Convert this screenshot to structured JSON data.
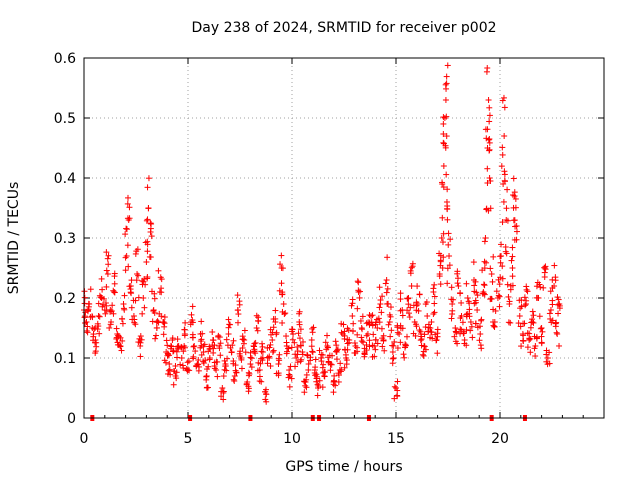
{
  "chart_data": {
    "type": "scatter",
    "title": "Day 238 of 2024, SRMTID for receiver p002",
    "xlabel": "GPS time / hours",
    "ylabel": "SRMTID / TECUs",
    "xlim": [
      0,
      25
    ],
    "ylim": [
      0,
      0.6
    ],
    "xticks": [
      0,
      5,
      10,
      15,
      20
    ],
    "xtick_labels": [
      "0",
      "5",
      "10",
      "15",
      "20"
    ],
    "yticks": [
      0,
      0.1,
      0.2,
      0.3,
      0.4,
      0.5,
      0.6
    ],
    "ytick_labels": [
      "0",
      "0.1",
      "0.2",
      "0.3",
      "0.4",
      "0.5",
      "0.6"
    ],
    "grid": true,
    "marker": "+",
    "color": "#ff0000",
    "series": [
      {
        "name": "SRMTID",
        "points": [
          [
            0.0,
            0.18
          ],
          [
            0.12,
            0.16
          ],
          [
            0.25,
            0.19
          ],
          [
            0.4,
            0.15
          ],
          [
            0.55,
            0.13
          ],
          [
            0.7,
            0.17
          ],
          [
            0.85,
            0.2
          ],
          [
            1.0,
            0.18
          ],
          [
            1.15,
            0.24
          ],
          [
            1.3,
            0.16
          ],
          [
            1.45,
            0.21
          ],
          [
            1.6,
            0.14
          ],
          [
            1.75,
            0.12
          ],
          [
            1.9,
            0.19
          ],
          [
            2.05,
            0.27
          ],
          [
            2.15,
            0.33
          ],
          [
            2.25,
            0.22
          ],
          [
            2.4,
            0.17
          ],
          [
            2.55,
            0.24
          ],
          [
            2.7,
            0.12
          ],
          [
            2.85,
            0.2
          ],
          [
            3.0,
            0.26
          ],
          [
            3.1,
            0.35
          ],
          [
            3.2,
            0.31
          ],
          [
            3.35,
            0.18
          ],
          [
            3.5,
            0.15
          ],
          [
            3.65,
            0.21
          ],
          [
            3.8,
            0.16
          ],
          [
            3.95,
            0.11
          ],
          [
            4.1,
            0.09
          ],
          [
            4.25,
            0.13
          ],
          [
            4.4,
            0.07
          ],
          [
            4.55,
            0.12
          ],
          [
            4.7,
            0.1
          ],
          [
            4.85,
            0.14
          ],
          [
            5.0,
            0.08
          ],
          [
            5.15,
            0.16
          ],
          [
            5.3,
            0.12
          ],
          [
            5.45,
            0.09
          ],
          [
            5.6,
            0.14
          ],
          [
            5.75,
            0.11
          ],
          [
            5.9,
            0.07
          ],
          [
            6.05,
            0.1
          ],
          [
            6.2,
            0.13
          ],
          [
            6.35,
            0.08
          ],
          [
            6.5,
            0.12
          ],
          [
            6.65,
            0.05
          ],
          [
            6.8,
            0.09
          ],
          [
            6.95,
            0.14
          ],
          [
            7.1,
            0.11
          ],
          [
            7.25,
            0.07
          ],
          [
            7.4,
            0.18
          ],
          [
            7.55,
            0.1
          ],
          [
            7.7,
            0.13
          ],
          [
            7.85,
            0.06
          ],
          [
            8.0,
            0.09
          ],
          [
            8.15,
            0.12
          ],
          [
            8.3,
            0.15
          ],
          [
            8.45,
            0.08
          ],
          [
            8.6,
            0.11
          ],
          [
            8.75,
            0.04
          ],
          [
            8.9,
            0.1
          ],
          [
            9.05,
            0.13
          ],
          [
            9.2,
            0.16
          ],
          [
            9.35,
            0.09
          ],
          [
            9.5,
            0.25
          ],
          [
            9.6,
            0.19
          ],
          [
            9.75,
            0.12
          ],
          [
            9.9,
            0.07
          ],
          [
            10.05,
            0.14
          ],
          [
            10.2,
            0.1
          ],
          [
            10.35,
            0.16
          ],
          [
            10.5,
            0.11
          ],
          [
            10.65,
            0.06
          ],
          [
            10.8,
            0.09
          ],
          [
            10.95,
            0.13
          ],
          [
            11.1,
            0.08
          ],
          [
            11.25,
            0.05
          ],
          [
            11.4,
            0.1
          ],
          [
            11.55,
            0.07
          ],
          [
            11.7,
            0.12
          ],
          [
            11.85,
            0.09
          ],
          [
            12.0,
            0.06
          ],
          [
            12.15,
            0.11
          ],
          [
            12.3,
            0.08
          ],
          [
            12.45,
            0.14
          ],
          [
            12.6,
            0.1
          ],
          [
            12.75,
            0.13
          ],
          [
            12.9,
            0.17
          ],
          [
            13.05,
            0.12
          ],
          [
            13.2,
            0.21
          ],
          [
            13.35,
            0.15
          ],
          [
            13.5,
            0.11
          ],
          [
            13.65,
            0.14
          ],
          [
            13.8,
            0.17
          ],
          [
            13.95,
            0.12
          ],
          [
            14.1,
            0.15
          ],
          [
            14.25,
            0.19
          ],
          [
            14.4,
            0.13
          ],
          [
            14.55,
            0.23
          ],
          [
            14.7,
            0.16
          ],
          [
            14.85,
            0.11
          ],
          [
            15.0,
            0.05
          ],
          [
            15.15,
            0.14
          ],
          [
            15.3,
            0.18
          ],
          [
            15.45,
            0.12
          ],
          [
            15.6,
            0.2
          ],
          [
            15.75,
            0.22
          ],
          [
            15.9,
            0.16
          ],
          [
            16.05,
            0.19
          ],
          [
            16.2,
            0.14
          ],
          [
            16.35,
            0.12
          ],
          [
            16.5,
            0.17
          ],
          [
            16.65,
            0.15
          ],
          [
            16.8,
            0.21
          ],
          [
            16.95,
            0.13
          ],
          [
            17.1,
            0.24
          ],
          [
            17.2,
            0.3
          ],
          [
            17.3,
            0.42
          ],
          [
            17.35,
            0.5
          ],
          [
            17.4,
            0.53
          ],
          [
            17.45,
            0.36
          ],
          [
            17.55,
            0.27
          ],
          [
            17.7,
            0.19
          ],
          [
            17.85,
            0.15
          ],
          [
            18.0,
            0.22
          ],
          [
            18.15,
            0.17
          ],
          [
            18.3,
            0.13
          ],
          [
            18.45,
            0.2
          ],
          [
            18.6,
            0.16
          ],
          [
            18.75,
            0.23
          ],
          [
            18.9,
            0.18
          ],
          [
            19.05,
            0.14
          ],
          [
            19.2,
            0.21
          ],
          [
            19.3,
            0.3
          ],
          [
            19.4,
            0.45
          ],
          [
            19.45,
            0.53
          ],
          [
            19.5,
            0.4
          ],
          [
            19.6,
            0.24
          ],
          [
            19.75,
            0.16
          ],
          [
            19.9,
            0.2
          ],
          [
            20.05,
            0.27
          ],
          [
            20.15,
            0.39
          ],
          [
            20.2,
            0.47
          ],
          [
            20.3,
            0.33
          ],
          [
            20.45,
            0.19
          ],
          [
            20.6,
            0.25
          ],
          [
            20.7,
            0.37
          ],
          [
            20.8,
            0.32
          ],
          [
            20.95,
            0.17
          ],
          [
            21.1,
            0.14
          ],
          [
            21.25,
            0.19
          ],
          [
            21.4,
            0.13
          ],
          [
            21.55,
            0.16
          ],
          [
            21.7,
            0.12
          ],
          [
            21.85,
            0.2
          ],
          [
            22.0,
            0.15
          ],
          [
            22.15,
            0.25
          ],
          [
            22.3,
            0.1
          ],
          [
            22.45,
            0.18
          ],
          [
            22.6,
            0.22
          ],
          [
            22.75,
            0.14
          ],
          [
            22.85,
            0.19
          ]
        ]
      }
    ],
    "zero_marks_x": [
      0.4,
      5.1,
      8.0,
      11.0,
      11.3,
      13.7,
      19.6,
      21.2
    ]
  }
}
